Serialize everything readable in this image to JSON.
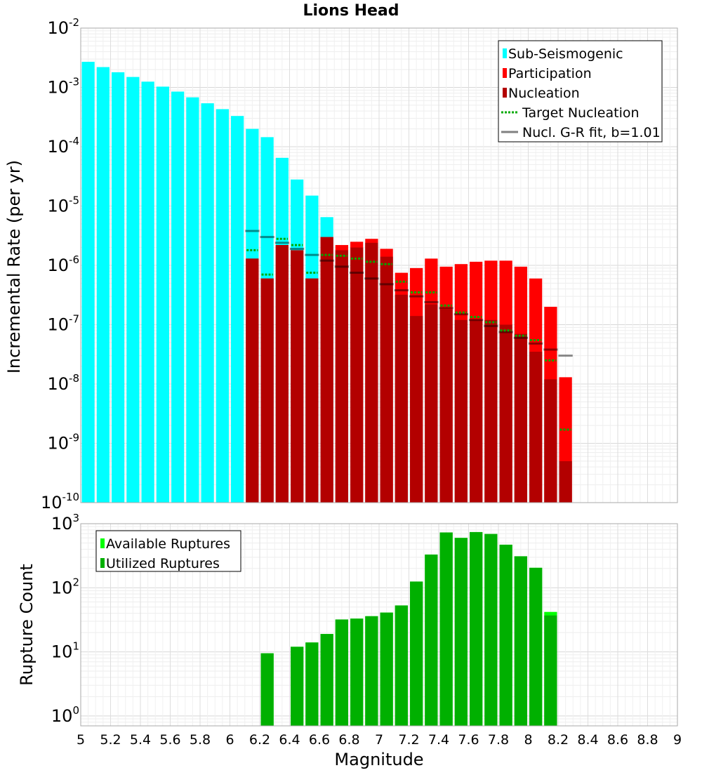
{
  "chart_data": [
    {
      "type": "bar",
      "title": "Lions Head",
      "ylabel": "Incremental Rate (per yr)",
      "xlabel": "",
      "yscale": "log",
      "ylim": [
        1e-10,
        0.01
      ],
      "xlim": [
        5,
        9
      ],
      "x_ticks": [
        "5",
        "5.2",
        "5.4",
        "5.6",
        "5.8",
        "6",
        "6.2",
        "6.4",
        "6.6",
        "6.8",
        "7",
        "7.2",
        "7.4",
        "7.6",
        "7.8",
        "8",
        "8.2",
        "8.4",
        "8.6",
        "8.8",
        "9"
      ],
      "y_ticks": [
        {
          "base": "10",
          "exp": "-2",
          "value": 0.01
        },
        {
          "base": "10",
          "exp": "-3",
          "value": 0.001
        },
        {
          "base": "10",
          "exp": "-4",
          "value": 0.0001
        },
        {
          "base": "10",
          "exp": "-5",
          "value": 1e-05
        },
        {
          "base": "10",
          "exp": "-6",
          "value": 1e-06
        },
        {
          "base": "10",
          "exp": "-7",
          "value": 1e-07
        },
        {
          "base": "10",
          "exp": "-8",
          "value": 1e-08
        },
        {
          "base": "10",
          "exp": "-9",
          "value": 1e-09
        },
        {
          "base": "10",
          "exp": "-10",
          "value": 1e-10
        }
      ],
      "grid": true,
      "legend_position": "top-right",
      "series": [
        {
          "name": "Sub-Seismogenic",
          "color": "#00ffff",
          "style": "bar",
          "points": [
            [
              5.05,
              0.0027
            ],
            [
              5.15,
              0.0022
            ],
            [
              5.25,
              0.0018
            ],
            [
              5.35,
              0.0015
            ],
            [
              5.45,
              0.00125
            ],
            [
              5.55,
              0.00103
            ],
            [
              5.65,
              0.00085
            ],
            [
              5.75,
              0.00068
            ],
            [
              5.85,
              0.00054
            ],
            [
              5.95,
              0.00043
            ],
            [
              6.05,
              0.00033
            ],
            [
              6.15,
              0.0002
            ],
            [
              6.25,
              0.000145
            ],
            [
              6.35,
              6.5e-05
            ],
            [
              6.45,
              2.8e-05
            ],
            [
              6.55,
              1.5e-05
            ],
            [
              6.65,
              6.5e-06
            ]
          ]
        },
        {
          "name": "Participation",
          "color": "#ff0000",
          "style": "bar",
          "points": [
            [
              6.15,
              1.3e-06
            ],
            [
              6.25,
              6e-07
            ],
            [
              6.35,
              2.2e-06
            ],
            [
              6.45,
              1.8e-06
            ],
            [
              6.55,
              6e-07
            ],
            [
              6.65,
              3e-06
            ],
            [
              6.75,
              2.2e-06
            ],
            [
              6.85,
              2.5e-06
            ],
            [
              6.95,
              2.8e-06
            ],
            [
              7.05,
              1.9e-06
            ],
            [
              7.15,
              7.5e-07
            ],
            [
              7.25,
              9e-07
            ],
            [
              7.35,
              1.3e-06
            ],
            [
              7.45,
              9.5e-07
            ],
            [
              7.55,
              1.05e-06
            ],
            [
              7.65,
              1.15e-06
            ],
            [
              7.75,
              1.2e-06
            ],
            [
              7.85,
              1.2e-06
            ],
            [
              7.95,
              9.5e-07
            ],
            [
              8.05,
              6e-07
            ],
            [
              8.15,
              2e-07
            ],
            [
              8.25,
              1.3e-08
            ]
          ]
        },
        {
          "name": "Nucleation",
          "color": "#b30000",
          "style": "bar",
          "points": [
            [
              6.15,
              1.3e-06
            ],
            [
              6.25,
              6e-07
            ],
            [
              6.35,
              2.2e-06
            ],
            [
              6.45,
              1.8e-06
            ],
            [
              6.55,
              6e-07
            ],
            [
              6.65,
              3e-06
            ],
            [
              6.75,
              1.8e-06
            ],
            [
              6.85,
              2e-06
            ],
            [
              6.95,
              2.4e-06
            ],
            [
              7.05,
              1.4e-06
            ],
            [
              7.15,
              3.2e-07
            ],
            [
              7.25,
              1.4e-07
            ],
            [
              7.35,
              2.2e-07
            ],
            [
              7.45,
              1.8e-07
            ],
            [
              7.55,
              1.2e-07
            ],
            [
              7.65,
              1.2e-07
            ],
            [
              7.75,
              1.2e-07
            ],
            [
              7.85,
              1e-07
            ],
            [
              7.95,
              7e-08
            ],
            [
              8.05,
              3.5e-08
            ],
            [
              8.15,
              1.2e-08
            ],
            [
              8.25,
              5e-10
            ]
          ]
        },
        {
          "name": "Target Nucleation",
          "color": "#00aa00",
          "style": "dotted-segment",
          "points": [
            [
              6.15,
              1.8e-06
            ],
            [
              6.25,
              7e-07
            ],
            [
              6.35,
              2.8e-06
            ],
            [
              6.45,
              2.2e-06
            ],
            [
              6.55,
              7.5e-07
            ],
            [
              6.65,
              1.5e-06
            ],
            [
              6.75,
              1.45e-06
            ],
            [
              6.85,
              1.3e-06
            ],
            [
              6.95,
              1.15e-06
            ],
            [
              7.05,
              1.05e-06
            ],
            [
              7.15,
              5.3e-07
            ],
            [
              7.25,
              3.5e-07
            ],
            [
              7.35,
              3.5e-07
            ],
            [
              7.45,
              2.1e-07
            ],
            [
              7.55,
              1.6e-07
            ],
            [
              7.65,
              1.35e-07
            ],
            [
              7.75,
              1.1e-07
            ],
            [
              7.85,
              8e-08
            ],
            [
              7.95,
              6.5e-08
            ],
            [
              8.05,
              5.5e-08
            ],
            [
              8.15,
              2.5e-08
            ],
            [
              8.25,
              1.7e-09
            ]
          ]
        },
        {
          "name": "Nucl. G-R fit, b=1.01",
          "color": "#808080",
          "style": "solid-segment",
          "points": [
            [
              6.15,
              3.8e-06
            ],
            [
              6.25,
              3e-06
            ],
            [
              6.35,
              2.4e-06
            ],
            [
              6.45,
              1.9e-06
            ],
            [
              6.55,
              1.5e-06
            ],
            [
              6.65,
              1.2e-06
            ],
            [
              6.75,
              9.5e-07
            ],
            [
              6.85,
              7.5e-07
            ],
            [
              6.95,
              6e-07
            ],
            [
              7.05,
              4.8e-07
            ],
            [
              7.15,
              3.8e-07
            ],
            [
              7.25,
              3e-07
            ],
            [
              7.35,
              2.4e-07
            ],
            [
              7.45,
              1.9e-07
            ],
            [
              7.55,
              1.5e-07
            ],
            [
              7.65,
              1.2e-07
            ],
            [
              7.75,
              9.5e-08
            ],
            [
              7.85,
              7.5e-08
            ],
            [
              7.95,
              6e-08
            ],
            [
              8.05,
              4.8e-08
            ],
            [
              8.15,
              3.8e-08
            ],
            [
              8.25,
              3e-08
            ]
          ]
        }
      ]
    },
    {
      "type": "bar",
      "title": "",
      "ylabel": "Rupture Count",
      "xlabel": "Magnitude",
      "yscale": "log",
      "ylim": [
        0.7,
        1000
      ],
      "xlim": [
        5,
        9
      ],
      "x_ticks": [
        "5",
        "5.2",
        "5.4",
        "5.6",
        "5.8",
        "6",
        "6.2",
        "6.4",
        "6.6",
        "6.8",
        "7",
        "7.2",
        "7.4",
        "7.6",
        "7.8",
        "8",
        "8.2",
        "8.4",
        "8.6",
        "8.8",
        "9"
      ],
      "y_ticks": [
        {
          "base": "10",
          "exp": "3",
          "value": 1000
        },
        {
          "base": "10",
          "exp": "2",
          "value": 100
        },
        {
          "base": "10",
          "exp": "1",
          "value": 10
        },
        {
          "base": "10",
          "exp": "0",
          "value": 1
        }
      ],
      "grid": true,
      "legend_position": "top-left",
      "series": [
        {
          "name": "Available Ruptures",
          "color": "#00ff00",
          "style": "bar",
          "points": [
            [
              6.25,
              9.5
            ],
            [
              6.45,
              12
            ],
            [
              6.55,
              14
            ],
            [
              6.65,
              19
            ],
            [
              6.75,
              32
            ],
            [
              6.85,
              33
            ],
            [
              6.95,
              36
            ],
            [
              7.05,
              41
            ],
            [
              7.15,
              53
            ],
            [
              7.25,
              125
            ],
            [
              7.35,
              330
            ],
            [
              7.45,
              730
            ],
            [
              7.55,
              600
            ],
            [
              7.65,
              740
            ],
            [
              7.75,
              690
            ],
            [
              7.85,
              470
            ],
            [
              7.95,
              310
            ],
            [
              8.05,
              205
            ],
            [
              8.15,
              42
            ]
          ]
        },
        {
          "name": "Utilized Ruptures",
          "color": "#00b000",
          "style": "bar",
          "points": [
            [
              6.25,
              9.5
            ],
            [
              6.45,
              12
            ],
            [
              6.55,
              14
            ],
            [
              6.65,
              19
            ],
            [
              6.75,
              32
            ],
            [
              6.85,
              33
            ],
            [
              6.95,
              36
            ],
            [
              7.05,
              41
            ],
            [
              7.15,
              53
            ],
            [
              7.25,
              125
            ],
            [
              7.35,
              330
            ],
            [
              7.45,
              730
            ],
            [
              7.55,
              600
            ],
            [
              7.65,
              740
            ],
            [
              7.75,
              690
            ],
            [
              7.85,
              470
            ],
            [
              7.95,
              310
            ],
            [
              8.05,
              205
            ],
            [
              8.15,
              37
            ]
          ]
        }
      ]
    }
  ]
}
